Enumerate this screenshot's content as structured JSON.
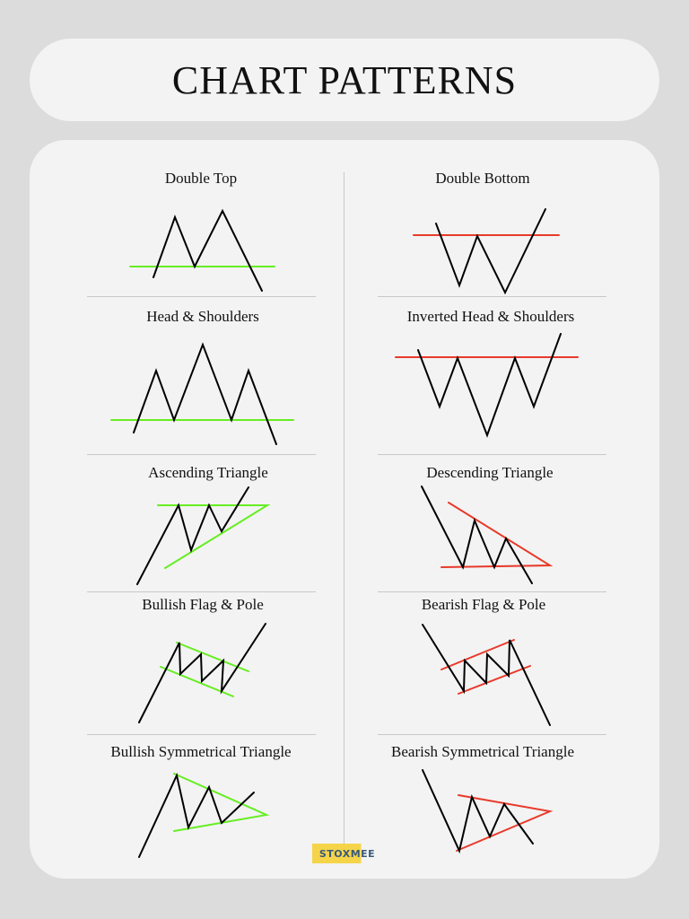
{
  "title": "CHART PATTERNS",
  "brand": "STOXMEE",
  "colors": {
    "price": "#000000",
    "bullish": "#66ee22",
    "bearish": "#e83a2a",
    "background": "#dcdcdc",
    "card": "#f3f3f3"
  },
  "patterns": [
    {
      "id": "double-top",
      "label": "Double Top",
      "level_color": "bullish"
    },
    {
      "id": "double-bottom",
      "label": "Double Bottom",
      "level_color": "bearish"
    },
    {
      "id": "head-shoulders",
      "label": "Head & Shoulders",
      "level_color": "bullish"
    },
    {
      "id": "inverted-head-shoulders",
      "label": "Inverted Head & Shoulders",
      "level_color": "bearish"
    },
    {
      "id": "ascending-triangle",
      "label": "Ascending Triangle",
      "level_color": "bullish"
    },
    {
      "id": "descending-triangle",
      "label": "Descending Triangle",
      "level_color": "bearish"
    },
    {
      "id": "bullish-flag-pole",
      "label": "Bullish Flag & Pole",
      "level_color": "bullish"
    },
    {
      "id": "bearish-flag-pole",
      "label": "Bearish Flag & Pole",
      "level_color": "bearish"
    },
    {
      "id": "bullish-symmetrical-triangle",
      "label": "Bullish Symmetrical Triangle",
      "level_color": "bullish"
    },
    {
      "id": "bearish-symmetrical-triangle",
      "label": "Bearish Symmetrical Triangle",
      "level_color": "bearish"
    }
  ]
}
